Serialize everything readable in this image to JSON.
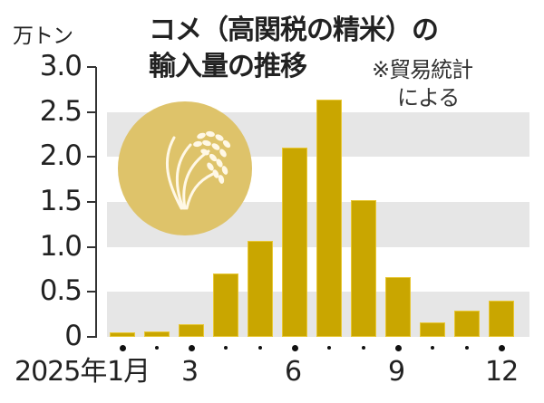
{
  "header": {
    "unit_label": "万トン",
    "title_line1": "コメ（高関税の精米）の",
    "title_line2": "輸入量の推移",
    "note_line1": "※貿易統計",
    "note_line2": "による"
  },
  "icons": {
    "emblem": "rice-plant-icon"
  },
  "colors": {
    "bar": "#c9a600",
    "band": "#e6e6e6",
    "emblem": "#dec36a"
  },
  "axis": {
    "y_ticks": [
      "3.0",
      "2.5",
      "2.0",
      "1.5",
      "1.0",
      "0.5",
      "0"
    ],
    "x_year_label": "2025年",
    "x_labels": [
      "1月",
      "3",
      "6",
      "9",
      "12"
    ]
  },
  "chart_data": {
    "type": "bar",
    "title": "コメ（高関税の精米）の輸入量の推移",
    "subtitle": "※貿易統計による",
    "xlabel": "2025年（月）",
    "ylabel": "万トン",
    "ylim": [
      0,
      3.0
    ],
    "y_ticks": [
      0,
      0.5,
      1.0,
      1.5,
      2.0,
      2.5,
      3.0
    ],
    "grid": "alternating horizontal bands",
    "categories": [
      "1月",
      "2月",
      "3月",
      "4月",
      "5月",
      "6月",
      "7月",
      "8月",
      "9月",
      "10月",
      "11月",
      "12月"
    ],
    "x_tick_labels_shown": {
      "1月": "1月",
      "3月": "3",
      "6月": "6",
      "9月": "9",
      "12月": "12"
    },
    "values": [
      0.05,
      0.06,
      0.14,
      0.7,
      1.07,
      2.1,
      2.64,
      1.52,
      0.66,
      0.16,
      0.29,
      0.4
    ]
  }
}
